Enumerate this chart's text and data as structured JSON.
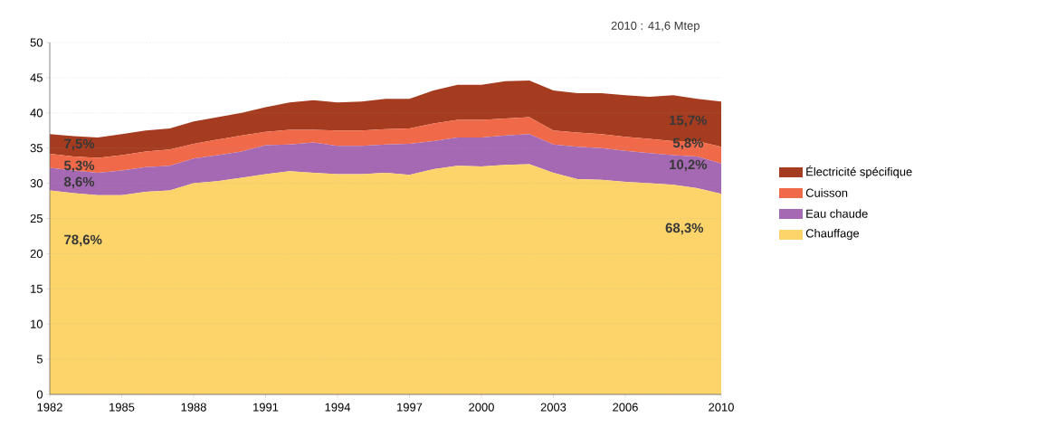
{
  "chart_data": {
    "type": "area",
    "stacked": true,
    "x": [
      1982,
      1983,
      1984,
      1985,
      1986,
      1987,
      1988,
      1989,
      1990,
      1991,
      1992,
      1993,
      1994,
      1995,
      1996,
      1997,
      1998,
      1999,
      2000,
      2001,
      2002,
      2003,
      2004,
      2005,
      2006,
      2007,
      2008,
      2009,
      2010
    ],
    "series": [
      {
        "name": "Chauffage",
        "color": "#fcd46a",
        "values": [
          29,
          28.6,
          28.3,
          28.3,
          28.8,
          29,
          30,
          30.3,
          30.8,
          31.3,
          31.7,
          31.5,
          31.3,
          31.3,
          31.5,
          31.2,
          32,
          32.5,
          32.4,
          32.6,
          32.7,
          31.5,
          30.6,
          30.5,
          30.2,
          30,
          29.8,
          29.3,
          28.5
        ]
      },
      {
        "name": "Eau chaude",
        "color": "#a569b4",
        "values": [
          3.2,
          3.2,
          3.2,
          3.5,
          3.5,
          3.5,
          3.5,
          3.7,
          3.7,
          4.1,
          3.8,
          4.3,
          4.0,
          4.0,
          4.0,
          4.4,
          4.0,
          4.0,
          4.1,
          4.2,
          4.3,
          4.0,
          4.6,
          4.5,
          4.4,
          4.3,
          4.2,
          4.5,
          4.3
        ]
      },
      {
        "name": "Cuisson",
        "color": "#f06a4a",
        "values": [
          2.0,
          2.0,
          2.1,
          2.2,
          2.2,
          2.3,
          2.1,
          2.2,
          2.3,
          1.9,
          2.1,
          1.8,
          2.2,
          2.2,
          2.2,
          2.2,
          2.5,
          2.5,
          2.5,
          2.4,
          2.4,
          2.0,
          2.0,
          2.0,
          2.0,
          2.0,
          2.0,
          2.2,
          2.4
        ]
      },
      {
        "name": "Électricité spécifique",
        "color": "#a63c1f",
        "values": [
          2.8,
          2.9,
          2.9,
          3.0,
          3.0,
          3.0,
          3.2,
          3.2,
          3.2,
          3.5,
          3.9,
          4.2,
          4.0,
          4.1,
          4.3,
          4.2,
          4.7,
          5.0,
          5.0,
          5.3,
          5.2,
          5.7,
          5.6,
          5.8,
          5.9,
          6.0,
          6.5,
          6.0,
          6.4
        ]
      }
    ],
    "xlim": [
      1982,
      2010
    ],
    "ylim": [
      0,
      50
    ],
    "xticks": [
      1982,
      1985,
      1988,
      1991,
      1994,
      1997,
      2000,
      2003,
      2006,
      2010
    ],
    "yticks": [
      0,
      5,
      10,
      15,
      20,
      25,
      30,
      35,
      40,
      45,
      50
    ],
    "grid": "y",
    "legend": "right",
    "annotations": [
      "2010 : 41,6 Mtep",
      "7,5%",
      "5,3%",
      "8,6%",
      "78,6%",
      "15,7%",
      "5,8%",
      "10,2%",
      "68,3%"
    ]
  }
}
